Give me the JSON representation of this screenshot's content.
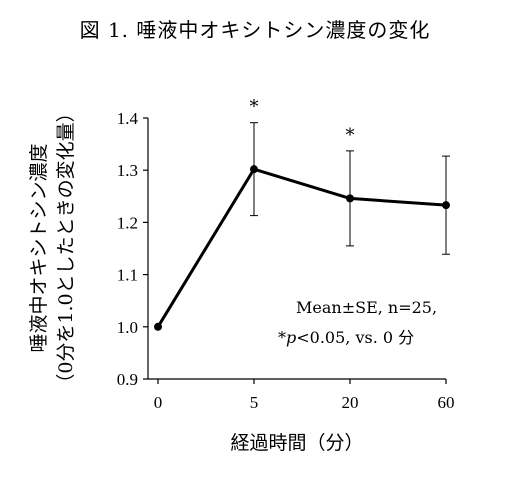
{
  "chart_data": {
    "type": "line",
    "title": "図 1.  唾液中オキシトシン濃度の変化",
    "xlabel": "経過時間（分）",
    "ylabel_line1": "唾液中オキシトシン濃度",
    "ylabel_line2": "（0分を1.0としたときの変化量）",
    "categories": [
      "0",
      "5",
      "20",
      "60"
    ],
    "series": [
      {
        "values": [
          1.0,
          1.302,
          1.246,
          1.233
        ],
        "error": [
          0,
          0.089,
          0.091,
          0.094
        ]
      }
    ],
    "significance": [
      "",
      "*",
      "*",
      ""
    ],
    "ylim": [
      0.9,
      1.4
    ],
    "yticks": [
      "0.9",
      "1.0",
      "1.1",
      "1.2",
      "1.3",
      "1.4"
    ],
    "annotation_line1": "Mean±SE, n=25,",
    "annotation_line2_star": "*",
    "annotation_line2_p": "p",
    "annotation_line2_rest": "<0.05, vs. 0 分",
    "grid": false,
    "line_color": "#000000"
  }
}
